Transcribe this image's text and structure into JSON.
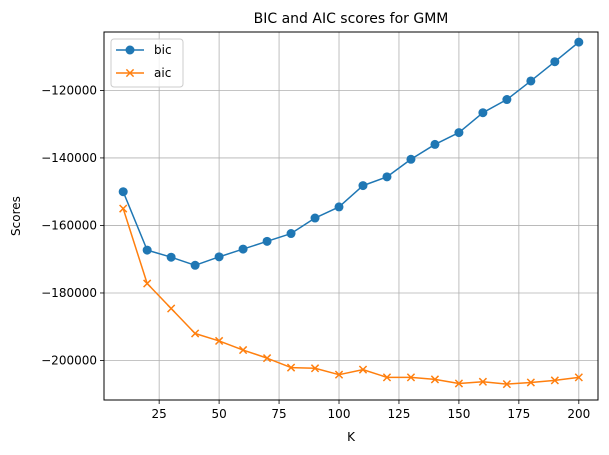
{
  "chart_data": {
    "type": "line",
    "title": "BIC and AIC scores for GMM",
    "xlabel": "K",
    "ylabel": "Scores",
    "x": [
      10,
      20,
      30,
      40,
      50,
      60,
      70,
      80,
      90,
      100,
      110,
      120,
      130,
      140,
      150,
      160,
      170,
      180,
      190,
      200
    ],
    "xlim": [
      2,
      208
    ],
    "ylim": [
      -211700,
      -102700
    ],
    "xticks": [
      25,
      50,
      75,
      100,
      125,
      150,
      175,
      200
    ],
    "yticks": [
      -200000,
      -180000,
      -160000,
      -140000,
      -120000
    ],
    "ytick_labels": [
      "−200000",
      "−180000",
      "−160000",
      "−140000",
      "−120000"
    ],
    "grid": true,
    "legend_position": "top-left",
    "series": [
      {
        "name": "bic",
        "color": "#1f77b4",
        "marker": "circle",
        "values": [
          -150000,
          -167300,
          -169400,
          -171800,
          -169300,
          -167000,
          -164700,
          -162400,
          -157800,
          -154500,
          -148200,
          -145600,
          -140400,
          -136000,
          -132500,
          -126600,
          -122700,
          -117200,
          -111500,
          -105700
        ]
      },
      {
        "name": "aic",
        "color": "#ff7f0e",
        "marker": "x",
        "values": [
          -155000,
          -177200,
          -184600,
          -192000,
          -194200,
          -196900,
          -199300,
          -202100,
          -202300,
          -204200,
          -202700,
          -205000,
          -205000,
          -205600,
          -206800,
          -206300,
          -207000,
          -206500,
          -205900,
          -205000
        ]
      }
    ]
  }
}
